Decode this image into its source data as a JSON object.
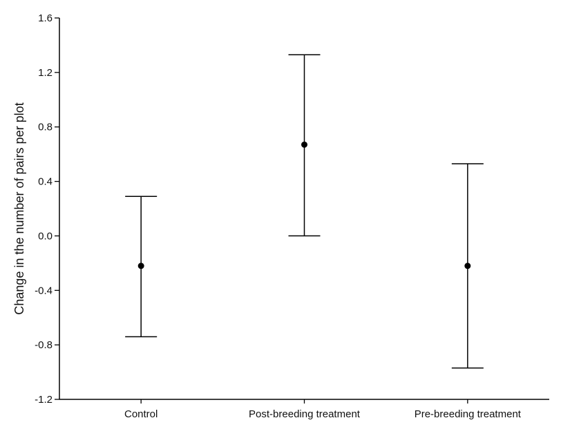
{
  "chart_data": {
    "type": "scatter",
    "subtype": "mean-with-error-bars",
    "title": "",
    "xlabel": "",
    "ylabel": "Change in the number of pairs per plot",
    "categories": [
      "Control",
      "Post-breeding treatment",
      "Pre-breeding treatment"
    ],
    "mean": [
      -0.22,
      0.67,
      -0.22
    ],
    "lower": [
      -0.74,
      0.0,
      -0.97
    ],
    "upper": [
      0.29,
      1.33,
      0.53
    ],
    "ylim": [
      -1.2,
      1.6
    ],
    "yticks": [
      -1.2,
      -0.8,
      -0.4,
      0.0,
      0.4,
      0.8,
      1.2,
      1.6
    ],
    "ytick_labels": [
      "-1.2",
      "-0.8",
      "-0.4",
      "0.0",
      "0.4",
      "0.8",
      "1.2",
      "1.6"
    ],
    "grid": false,
    "legend": "none",
    "colors": {
      "axis": "#000000",
      "marker": "#000000",
      "text": "#111111"
    }
  }
}
